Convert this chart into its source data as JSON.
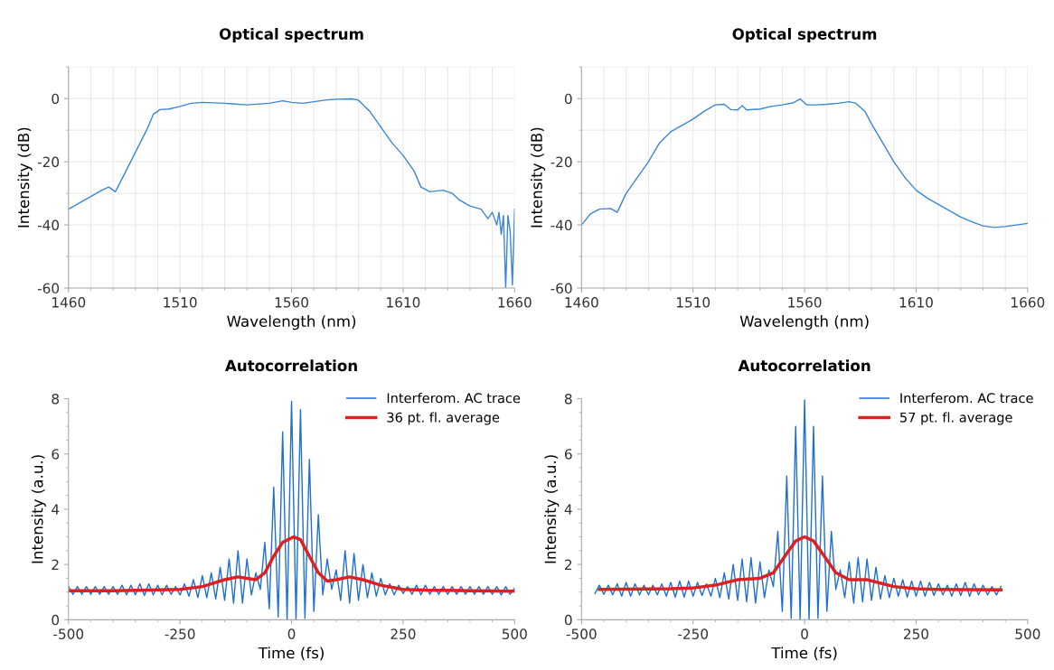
{
  "chart_data": [
    {
      "type": "line",
      "title": "Optical spectrum",
      "xlabel": "Wavelength (nm)",
      "ylabel": "Intensity (dB)",
      "xlim": [
        1460,
        1660
      ],
      "xticks": [
        1460,
        1510,
        1560,
        1610,
        1660
      ],
      "ylim": [
        -60,
        10
      ],
      "yticks": [
        -60,
        -40,
        -20,
        0
      ],
      "grid": true,
      "legend": false,
      "series": [
        {
          "color": "#3a86d4",
          "x": [
            1460,
            1465,
            1470,
            1475,
            1478,
            1481,
            1485,
            1490,
            1495,
            1498,
            1501,
            1505,
            1510,
            1515,
            1520,
            1530,
            1540,
            1550,
            1556,
            1560,
            1565,
            1575,
            1580,
            1587,
            1590,
            1595,
            1600,
            1605,
            1610,
            1615,
            1618,
            1622,
            1628,
            1632,
            1635,
            1640,
            1645,
            1648,
            1650,
            1652,
            1653,
            1654,
            1655,
            1656,
            1657,
            1658,
            1659,
            1660
          ],
          "values": [
            -35,
            -33,
            -31,
            -29,
            -28,
            -29.5,
            -24,
            -17,
            -10,
            -5,
            -3.5,
            -3.3,
            -2.5,
            -1.5,
            -1.2,
            -1.5,
            -2,
            -1.5,
            -0.7,
            -1.2,
            -1.5,
            -0.5,
            -0.2,
            -0.1,
            -0.5,
            -4,
            -9,
            -14,
            -18,
            -23,
            -28,
            -29.5,
            -29,
            -30,
            -32,
            -34,
            -35,
            -38,
            -36,
            -40,
            -36,
            -43,
            -37,
            -60,
            -37,
            -42,
            -59,
            -35
          ]
        }
      ]
    },
    {
      "type": "line",
      "title": "Optical spectrum",
      "xlabel": "Wavelength (nm)",
      "ylabel": "Intensity (dB)",
      "xlim": [
        1460,
        1660
      ],
      "xticks": [
        1460,
        1510,
        1560,
        1610,
        1660
      ],
      "ylim": [
        -60,
        10
      ],
      "yticks": [
        -60,
        -40,
        -20,
        0
      ],
      "grid": true,
      "legend": false,
      "series": [
        {
          "color": "#3a86d4",
          "x": [
            1460,
            1464,
            1468,
            1473,
            1476,
            1480,
            1485,
            1490,
            1495,
            1500,
            1505,
            1510,
            1515,
            1520,
            1524,
            1527,
            1530,
            1532,
            1534,
            1540,
            1545,
            1550,
            1555,
            1558,
            1561,
            1565,
            1570,
            1575,
            1580,
            1583,
            1587,
            1590,
            1595,
            1600,
            1605,
            1610,
            1615,
            1620,
            1625,
            1630,
            1635,
            1640,
            1645,
            1650,
            1655,
            1660
          ],
          "values": [
            -40,
            -36.5,
            -35,
            -34.8,
            -36,
            -30,
            -25,
            -20,
            -14,
            -10.5,
            -8.5,
            -6.5,
            -4,
            -2,
            -1.8,
            -3.5,
            -3.6,
            -2.2,
            -3.6,
            -3.3,
            -2.5,
            -2,
            -1.3,
            -0.1,
            -2,
            -2,
            -1.8,
            -1.5,
            -1,
            -1.5,
            -4,
            -8,
            -14,
            -20,
            -25,
            -29,
            -31.5,
            -33.5,
            -35.5,
            -37.5,
            -39,
            -40.3,
            -40.8,
            -40.5,
            -40,
            -39.5
          ]
        }
      ]
    },
    {
      "type": "line",
      "title": "Autocorrelation",
      "xlabel": "Time (fs)",
      "ylabel": "Intensity (a.u.)",
      "xlim": [
        -500,
        500
      ],
      "xticks": [
        -500,
        -250,
        0,
        250,
        500
      ],
      "ylim": [
        0,
        8
      ],
      "yticks": [
        0,
        2,
        4,
        6,
        8
      ],
      "legend": "top right",
      "series": [
        {
          "name": "Interferom. AC trace",
          "color": "#1f6fd0",
          "x": [
            -500,
            -490,
            -480,
            -470,
            -460,
            -450,
            -440,
            -430,
            -420,
            -410,
            -400,
            -390,
            -380,
            -370,
            -360,
            -350,
            -340,
            -330,
            -320,
            -310,
            -300,
            -290,
            -280,
            -270,
            -260,
            -250,
            -240,
            -230,
            -220,
            -210,
            -200,
            -190,
            -180,
            -170,
            -160,
            -150,
            -140,
            -130,
            -120,
            -110,
            -100,
            -90,
            -80,
            -70,
            -60,
            -50,
            -40,
            -30,
            -20,
            -10,
            0,
            10,
            20,
            30,
            40,
            50,
            60,
            70,
            80,
            90,
            100,
            110,
            120,
            130,
            140,
            150,
            160,
            170,
            180,
            190,
            200,
            210,
            220,
            230,
            240,
            250,
            260,
            270,
            280,
            290,
            300,
            310,
            320,
            330,
            340,
            350,
            360,
            370,
            380,
            390,
            400,
            410,
            420,
            430,
            440,
            450,
            460,
            470,
            480,
            490,
            500
          ],
          "values": [
            1.2,
            0.92,
            1.2,
            0.92,
            1.2,
            0.92,
            1.2,
            0.92,
            1.2,
            0.92,
            1.2,
            0.92,
            1.25,
            0.9,
            1.25,
            0.9,
            1.3,
            0.88,
            1.3,
            0.9,
            1.25,
            0.9,
            1.25,
            0.92,
            1.2,
            0.9,
            1.3,
            0.85,
            1.45,
            0.8,
            1.6,
            0.8,
            1.7,
            0.75,
            1.9,
            0.7,
            2.2,
            0.6,
            2.5,
            0.6,
            2.2,
            0.9,
            1.7,
            1.1,
            2.8,
            0.4,
            4.8,
            0.1,
            6.8,
            0,
            7.9,
            0,
            7.6,
            0.05,
            5.8,
            0.3,
            3.8,
            0.9,
            2.2,
            1.1,
            1.8,
            0.7,
            2.5,
            0.6,
            2.4,
            0.7,
            2.0,
            0.8,
            1.7,
            0.85,
            1.5,
            0.9,
            1.3,
            0.9,
            1.25,
            0.95,
            1.2,
            0.92,
            1.25,
            0.9,
            1.25,
            0.92,
            1.2,
            0.92,
            1.2,
            0.92,
            1.2,
            0.92,
            1.2,
            0.92,
            1.2,
            0.92,
            1.2,
            0.92,
            1.2,
            0.92,
            1.2,
            0.9,
            1.2,
            0.92,
            1.15
          ]
        },
        {
          "name": "36 pt. fl. average",
          "color": "#dd2020",
          "x": [
            -500,
            -400,
            -300,
            -250,
            -200,
            -150,
            -120,
            -100,
            -80,
            -60,
            -40,
            -20,
            5,
            20,
            40,
            60,
            80,
            100,
            130,
            160,
            200,
            250,
            300,
            400,
            500
          ],
          "values": [
            1.05,
            1.05,
            1.08,
            1.1,
            1.2,
            1.45,
            1.55,
            1.5,
            1.45,
            1.7,
            2.3,
            2.8,
            3.0,
            2.9,
            2.3,
            1.7,
            1.4,
            1.45,
            1.55,
            1.45,
            1.25,
            1.1,
            1.07,
            1.05,
            1.03
          ]
        }
      ]
    },
    {
      "type": "line",
      "title": "Autocorrelation",
      "xlabel": "Time (fs)",
      "ylabel": "Intensity (a.u.)",
      "xlim": [
        -500,
        500
      ],
      "xticks": [
        -500,
        -250,
        0,
        250,
        500
      ],
      "ylim": [
        0,
        8
      ],
      "yticks": [
        0,
        2,
        4,
        6,
        8
      ],
      "legend": "top right",
      "series": [
        {
          "name": "Interferom. AC trace",
          "color": "#1f6fd0",
          "x": [
            -470,
            -460,
            -450,
            -440,
            -430,
            -420,
            -410,
            -400,
            -390,
            -380,
            -370,
            -360,
            -350,
            -340,
            -330,
            -320,
            -310,
            -300,
            -290,
            -280,
            -270,
            -260,
            -250,
            -240,
            -230,
            -220,
            -210,
            -200,
            -190,
            -180,
            -170,
            -160,
            -150,
            -140,
            -130,
            -120,
            -110,
            -100,
            -90,
            -80,
            -70,
            -60,
            -50,
            -40,
            -30,
            -20,
            -10,
            0,
            10,
            20,
            30,
            40,
            50,
            60,
            70,
            80,
            90,
            100,
            110,
            120,
            130,
            140,
            150,
            160,
            170,
            180,
            190,
            200,
            210,
            220,
            230,
            240,
            250,
            260,
            270,
            280,
            290,
            300,
            310,
            320,
            330,
            340,
            350,
            360,
            370,
            380,
            390,
            400,
            410,
            420,
            430,
            440
          ],
          "values": [
            0.95,
            1.25,
            0.92,
            1.25,
            0.9,
            1.3,
            0.85,
            1.35,
            0.85,
            1.3,
            0.9,
            1.25,
            0.9,
            1.25,
            0.9,
            1.3,
            0.85,
            1.35,
            0.82,
            1.4,
            0.82,
            1.4,
            0.85,
            1.35,
            0.88,
            1.3,
            0.85,
            1.5,
            0.8,
            1.7,
            0.75,
            2.0,
            0.7,
            2.2,
            0.65,
            2.25,
            0.6,
            2.1,
            0.8,
            1.8,
            1.2,
            3.2,
            0.3,
            5.2,
            0.05,
            7.0,
            0,
            7.95,
            0,
            7.0,
            0.05,
            5.2,
            0.3,
            3.2,
            1.1,
            1.8,
            0.8,
            2.1,
            0.6,
            2.25,
            0.65,
            2.2,
            0.7,
            1.9,
            0.75,
            1.6,
            0.8,
            1.5,
            0.85,
            1.45,
            0.82,
            1.4,
            0.85,
            1.4,
            0.85,
            1.35,
            0.88,
            1.3,
            0.9,
            1.25,
            0.85,
            1.3,
            0.88,
            1.35,
            0.85,
            1.3,
            0.9,
            1.25,
            0.9,
            1.2,
            0.9,
            1.2
          ]
        },
        {
          "name": "57 pt. fl. average",
          "color": "#dd2020",
          "x": [
            -460,
            -300,
            -250,
            -200,
            -150,
            -100,
            -70,
            -40,
            -20,
            0,
            20,
            40,
            70,
            100,
            140,
            200,
            250,
            300,
            440
          ],
          "values": [
            1.1,
            1.12,
            1.15,
            1.25,
            1.45,
            1.5,
            1.7,
            2.4,
            2.85,
            3.0,
            2.85,
            2.4,
            1.7,
            1.45,
            1.45,
            1.2,
            1.12,
            1.1,
            1.08
          ]
        }
      ]
    }
  ]
}
